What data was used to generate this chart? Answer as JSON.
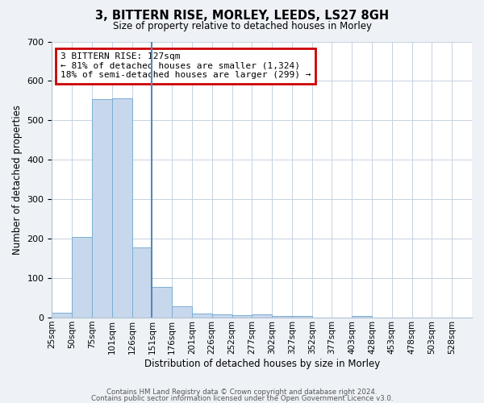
{
  "title": "3, BITTERN RISE, MORLEY, LEEDS, LS27 8GH",
  "subtitle": "Size of property relative to detached houses in Morley",
  "xlabel": "Distribution of detached houses by size in Morley",
  "ylabel": "Number of detached properties",
  "bar_color": "#c8d8ec",
  "bar_edge_color": "#7aadd4",
  "vline_color": "#5588bb",
  "annotation_box_color": "#cc0000",
  "annotation_line1": "3 BITTERN RISE: 127sqm",
  "annotation_line2": "← 81% of detached houses are smaller (1,324)",
  "annotation_line3": "18% of semi-detached houses are larger (299) →",
  "ylim": [
    0,
    700
  ],
  "yticks": [
    0,
    100,
    200,
    300,
    400,
    500,
    600,
    700
  ],
  "bin_labels": [
    "25sqm",
    "50sqm",
    "75sqm",
    "101sqm",
    "126sqm",
    "151sqm",
    "176sqm",
    "201sqm",
    "226sqm",
    "252sqm",
    "277sqm",
    "302sqm",
    "327sqm",
    "352sqm",
    "377sqm",
    "403sqm",
    "428sqm",
    "453sqm",
    "478sqm",
    "503sqm",
    "528sqm"
  ],
  "bar_heights": [
    12,
    204,
    554,
    556,
    178,
    78,
    29,
    10,
    8,
    7,
    8,
    4,
    4,
    0,
    0,
    5,
    0,
    0,
    0,
    0,
    0
  ],
  "vline_bin_index": 4,
  "footer_line1": "Contains HM Land Registry data © Crown copyright and database right 2024.",
  "footer_line2": "Contains public sector information licensed under the Open Government Licence v3.0.",
  "bg_color": "#eef2f7",
  "plot_bg_color": "#ffffff",
  "grid_color": "#c5d2e0",
  "title_fontsize": 10.5,
  "subtitle_fontsize": 8.5,
  "xlabel_fontsize": 8.5,
  "ylabel_fontsize": 8.5,
  "tick_fontsize": 7.5,
  "annot_fontsize": 8.0,
  "footer_fontsize": 6.2
}
